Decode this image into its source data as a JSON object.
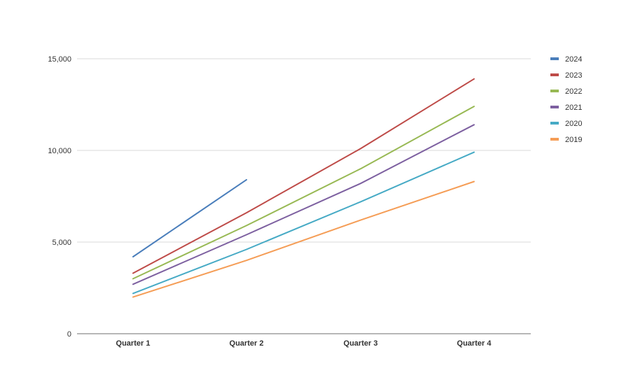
{
  "chart_data": {
    "type": "line",
    "title": "",
    "xlabel": "",
    "ylabel": "",
    "categories": [
      "Quarter 1",
      "Quarter 2",
      "Quarter 3",
      "Quarter 4"
    ],
    "ylim": [
      0,
      15000
    ],
    "yticks": [
      0,
      5000,
      10000,
      15000
    ],
    "ytick_labels": [
      "0",
      "5,000",
      "10,000",
      "15,000"
    ],
    "grid": true,
    "legend_position": "right",
    "series": [
      {
        "name": "2024",
        "color": "#4a7ebb",
        "values": [
          4200,
          8400,
          null,
          null
        ]
      },
      {
        "name": "2023",
        "color": "#be4b48",
        "values": [
          3300,
          6600,
          10100,
          13900
        ]
      },
      {
        "name": "2022",
        "color": "#98b954",
        "values": [
          3000,
          5900,
          9000,
          12400
        ]
      },
      {
        "name": "2021",
        "color": "#7d60a0",
        "values": [
          2700,
          5400,
          8200,
          11400
        ]
      },
      {
        "name": "2020",
        "color": "#46aac5",
        "values": [
          2200,
          4600,
          7200,
          9900
        ]
      },
      {
        "name": "2019",
        "color": "#f59d56",
        "values": [
          2000,
          4000,
          6200,
          8300
        ]
      }
    ]
  }
}
